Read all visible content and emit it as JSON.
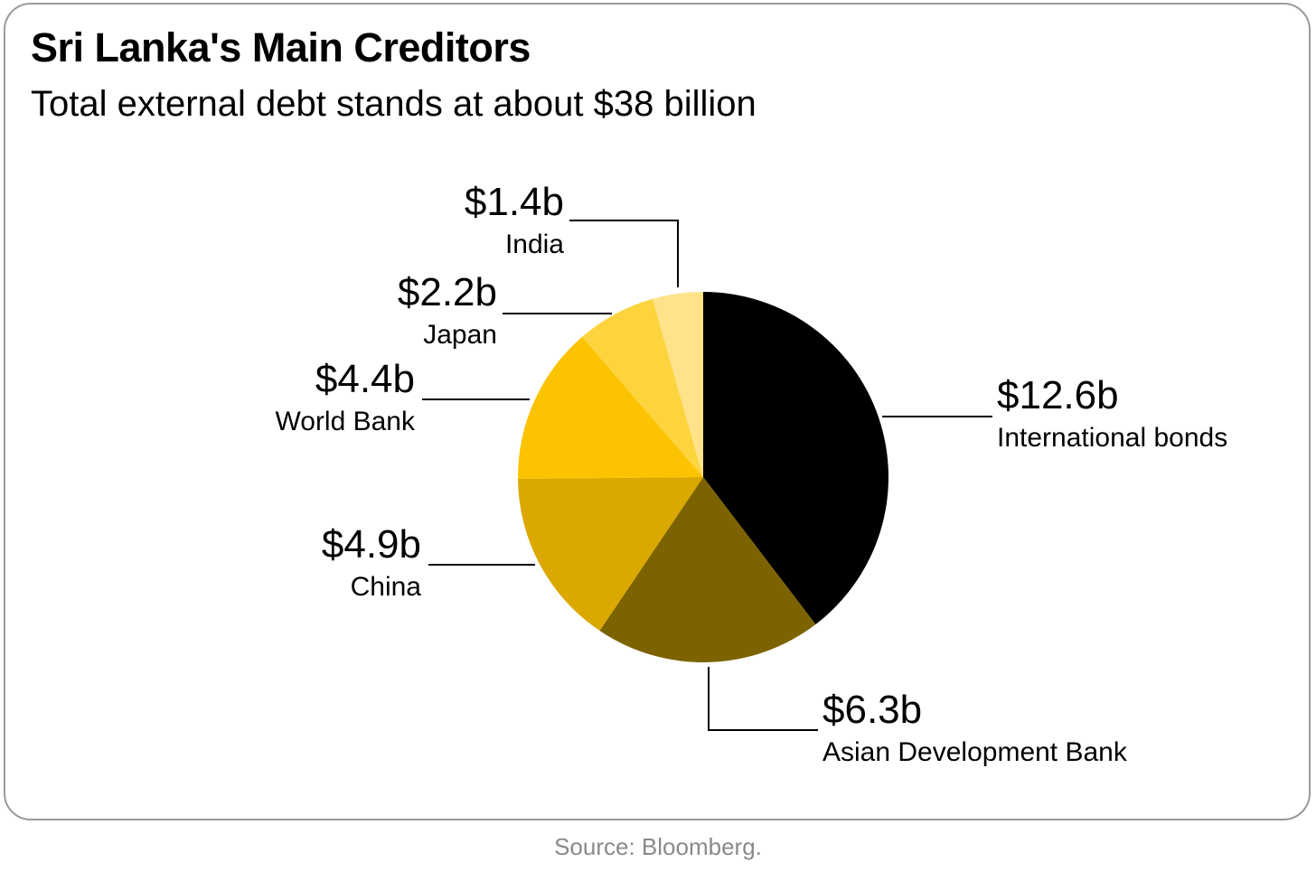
{
  "header": {
    "title": "Sri Lanka's Main Creditors",
    "subtitle": "Total external debt stands at about $38 billion"
  },
  "footer": {
    "source": "Source: Bloomberg."
  },
  "chart_data": {
    "type": "pie",
    "title": "Sri Lanka's Main Creditors",
    "subtitle": "Total external debt stands at about $38 billion",
    "unit": "billion USD",
    "slices": [
      {
        "id": "international-bonds",
        "label": "International bonds",
        "value": 12.6,
        "display": "$12.6b",
        "color": "#000000"
      },
      {
        "id": "asian-development-bank",
        "label": "Asian Development Bank",
        "value": 6.3,
        "display": "$6.3b",
        "color": "#7d6200"
      },
      {
        "id": "china",
        "label": "China",
        "value": 4.9,
        "display": "$4.9b",
        "color": "#dba800"
      },
      {
        "id": "world-bank",
        "label": "World Bank",
        "value": 4.4,
        "display": "$4.4b",
        "color": "#fcc300"
      },
      {
        "id": "japan",
        "label": "Japan",
        "value": 2.2,
        "display": "$2.2b",
        "color": "#fed43e"
      },
      {
        "id": "india",
        "label": "India",
        "value": 1.4,
        "display": "$1.4b",
        "color": "#ffe38a"
      }
    ]
  }
}
